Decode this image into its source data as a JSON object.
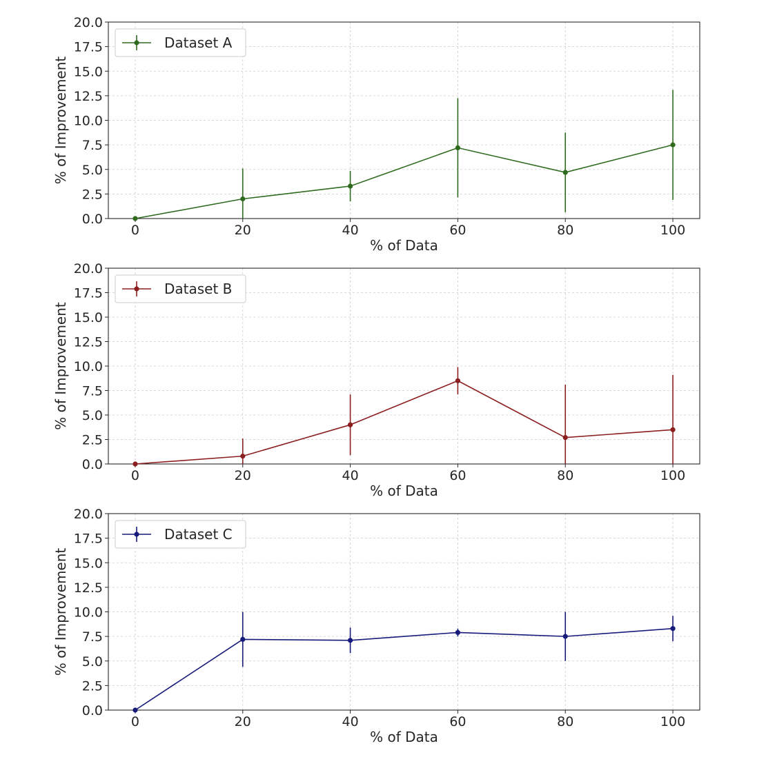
{
  "chart_data": [
    {
      "type": "line",
      "title": "",
      "xlabel": "% of Data",
      "ylabel": "% of Improvement",
      "x": [
        0,
        20,
        40,
        60,
        80,
        100
      ],
      "xticks": [
        "0",
        "20",
        "40",
        "60",
        "80",
        "100"
      ],
      "yticks": [
        "0.0",
        "2.5",
        "5.0",
        "7.5",
        "10.0",
        "12.5",
        "15.0",
        "17.5",
        "20.0"
      ],
      "xlim": [
        -5,
        105
      ],
      "ylim": [
        0,
        20
      ],
      "grid": true,
      "legend": "top-left",
      "series": [
        {
          "name": "Dataset A",
          "color": "#2e6b1f",
          "values": [
            0.0,
            2.0,
            3.3,
            7.2,
            4.7,
            7.5
          ],
          "errors": [
            0.0,
            3.1,
            1.55,
            5.05,
            4.05,
            5.6
          ]
        }
      ]
    },
    {
      "type": "line",
      "title": "",
      "xlabel": "% of Data",
      "ylabel": "% of Improvement",
      "x": [
        0,
        20,
        40,
        60,
        80,
        100
      ],
      "xticks": [
        "0",
        "20",
        "40",
        "60",
        "80",
        "100"
      ],
      "yticks": [
        "0.0",
        "2.5",
        "5.0",
        "7.5",
        "10.0",
        "12.5",
        "15.0",
        "17.5",
        "20.0"
      ],
      "xlim": [
        -5,
        105
      ],
      "ylim": [
        0,
        20
      ],
      "grid": true,
      "legend": "top-left",
      "series": [
        {
          "name": "Dataset B",
          "color": "#8b1e1e",
          "values": [
            0.0,
            0.8,
            4.0,
            8.5,
            2.7,
            3.5
          ],
          "errors": [
            0.0,
            1.8,
            3.1,
            1.4,
            5.4,
            5.6
          ]
        }
      ]
    },
    {
      "type": "line",
      "title": "",
      "xlabel": "% of Data",
      "ylabel": "% of Improvement",
      "x": [
        0,
        20,
        40,
        60,
        80,
        100
      ],
      "xticks": [
        "0",
        "20",
        "40",
        "60",
        "80",
        "100"
      ],
      "yticks": [
        "0.0",
        "2.5",
        "5.0",
        "7.5",
        "10.0",
        "12.5",
        "15.0",
        "17.5",
        "20.0"
      ],
      "xlim": [
        -5,
        105
      ],
      "ylim": [
        0,
        20
      ],
      "grid": true,
      "legend": "top-left",
      "series": [
        {
          "name": "Dataset C",
          "color": "#161a7a",
          "values": [
            0.0,
            7.2,
            7.1,
            7.9,
            7.5,
            8.3
          ],
          "errors": [
            0.0,
            2.8,
            1.3,
            0.4,
            2.5,
            1.3
          ]
        }
      ]
    }
  ]
}
